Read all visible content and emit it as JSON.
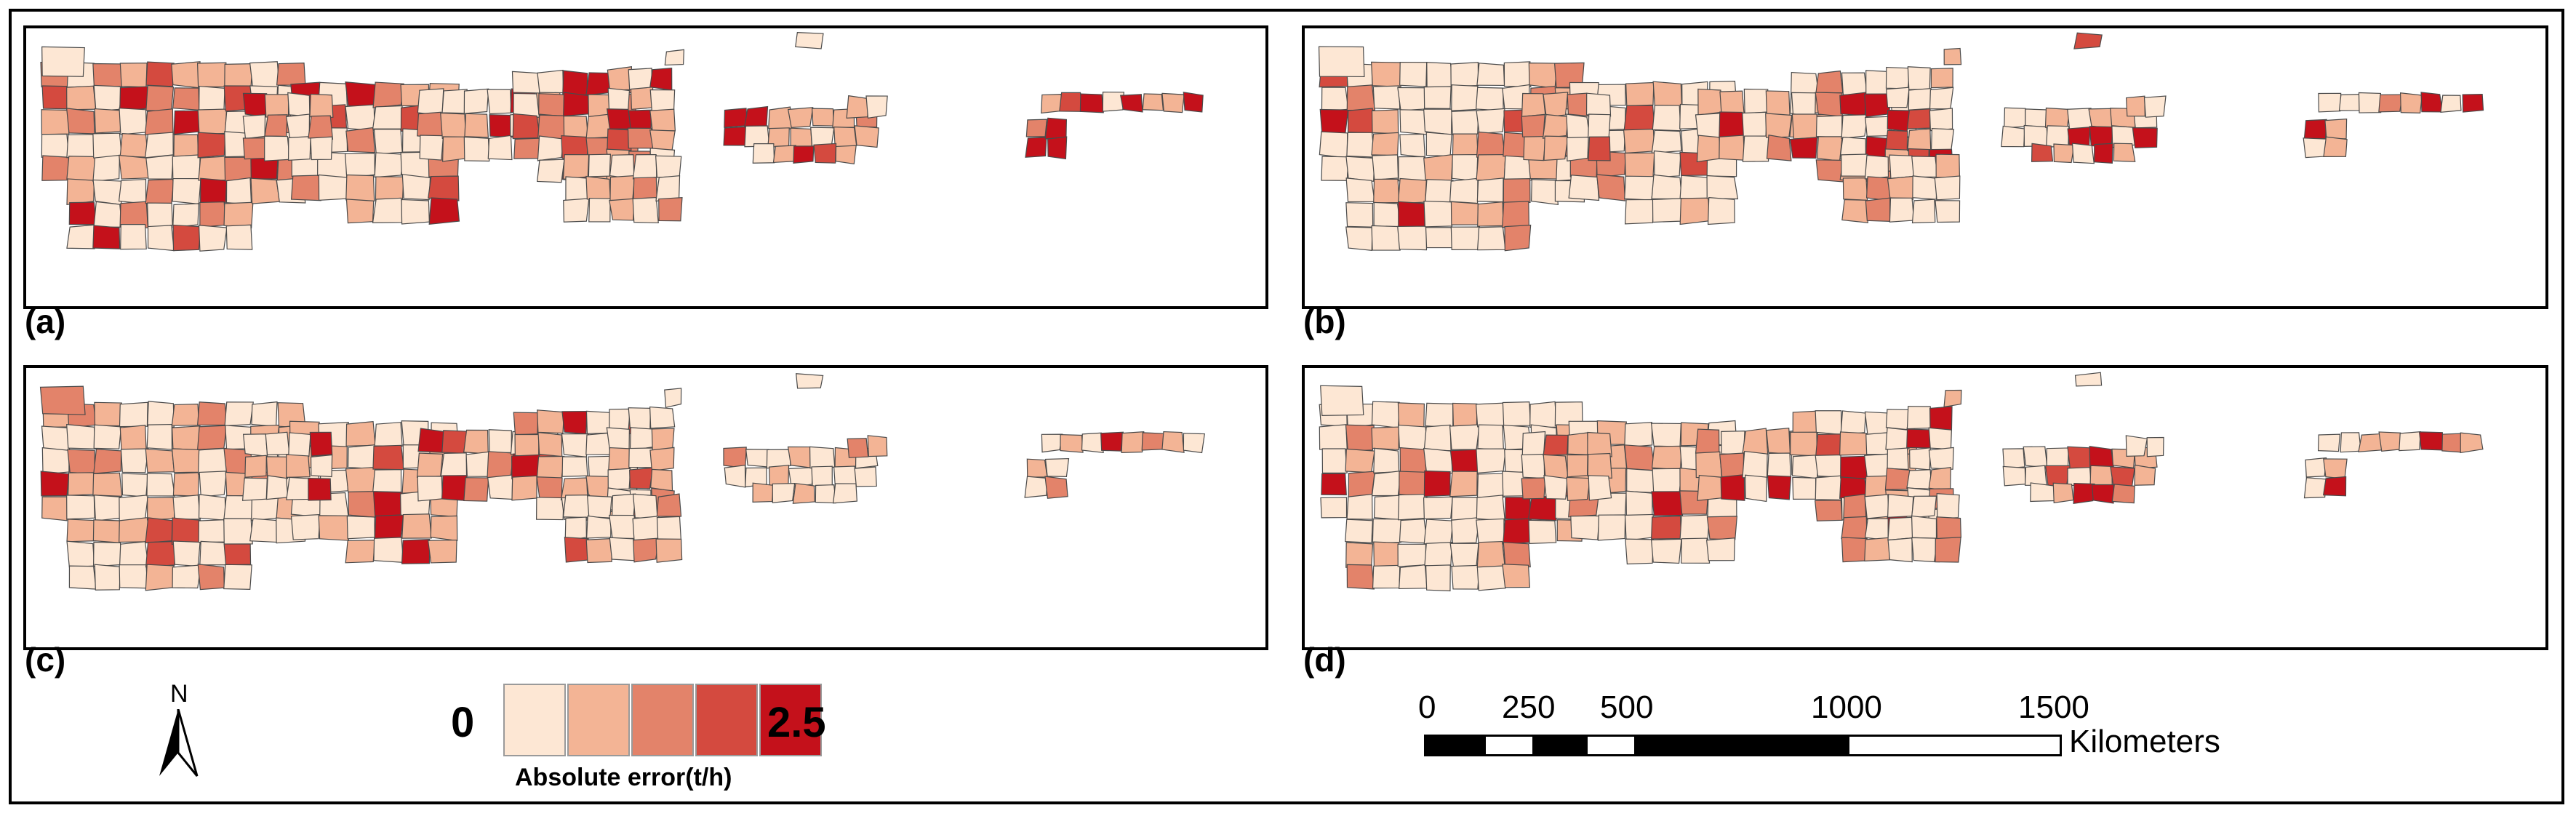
{
  "panels": [
    {
      "id": "a",
      "label": "(a)",
      "seed": 11,
      "hot": 0.34
    },
    {
      "id": "b",
      "label": "(b)",
      "seed": 23,
      "hot": 0.16
    },
    {
      "id": "c",
      "label": "(c)",
      "seed": 37,
      "hot": 0.1
    },
    {
      "id": "d",
      "label": "(d)",
      "seed": 53,
      "hot": 0.12
    }
  ],
  "legend": {
    "title": "Absolute error(t/h)",
    "min_label": "0",
    "max_label": "2.5",
    "colors": [
      "#fde7d4",
      "#f3b495",
      "#e3836a",
      "#d44a3f",
      "#c4111b"
    ]
  },
  "north_arrow": {
    "label": "N"
  },
  "scale_bar": {
    "ticks": [
      "0",
      "250",
      "500",
      "1000",
      "1500"
    ],
    "unit": "Kilometers"
  }
}
